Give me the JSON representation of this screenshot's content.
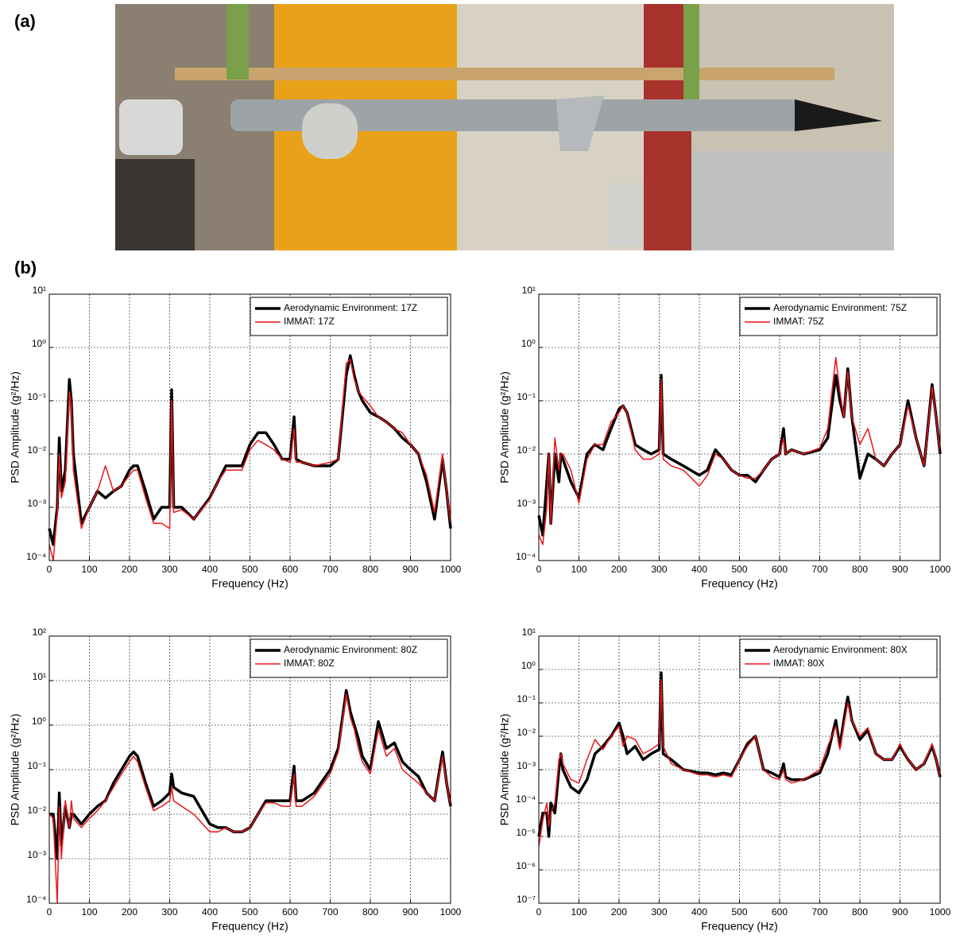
{
  "panel_labels": [
    "(a)",
    "(b)"
  ],
  "chart_data": [
    {
      "type": "line",
      "xlabel": "Frequency (Hz)",
      "ylabel": "PSD Amplitude (g²/Hz)",
      "yscale": "log",
      "grid": true,
      "legend": "upper right",
      "xlim": [
        0,
        1000
      ],
      "xticks": [
        0,
        100,
        200,
        300,
        400,
        500,
        600,
        700,
        800,
        900,
        1000
      ],
      "ylim": [
        0.0001,
        10
      ],
      "yticks": [
        {
          "value": 0.0001,
          "label": "10⁻⁴"
        },
        {
          "value": 0.001,
          "label": "10⁻³"
        },
        {
          "value": 0.01,
          "label": "10⁻²"
        },
        {
          "value": 0.1,
          "label": "10⁻¹"
        },
        {
          "value": 1,
          "label": "10⁰"
        },
        {
          "value": 10,
          "label": "10¹"
        }
      ],
      "x": [
        0,
        10,
        20,
        25,
        30,
        40,
        50,
        55,
        60,
        80,
        100,
        120,
        140,
        160,
        180,
        200,
        210,
        220,
        240,
        260,
        280,
        300,
        305,
        310,
        330,
        360,
        400,
        420,
        440,
        460,
        480,
        500,
        520,
        540,
        560,
        580,
        600,
        610,
        615,
        630,
        660,
        700,
        720,
        740,
        750,
        760,
        770,
        780,
        800,
        820,
        840,
        860,
        880,
        900,
        920,
        940,
        960,
        980,
        990,
        1000
      ],
      "series": [
        {
          "name": "Aerodynamic Environment: 17Z",
          "color": "#000000",
          "values": [
            0.0004,
            0.0002,
            0.001,
            0.02,
            0.002,
            0.005,
            0.25,
            0.1,
            0.01,
            0.0005,
            0.001,
            0.002,
            0.0015,
            0.002,
            0.0025,
            0.005,
            0.006,
            0.006,
            0.002,
            0.0006,
            0.001,
            0.001,
            0.16,
            0.001,
            0.001,
            0.0006,
            0.0015,
            0.003,
            0.006,
            0.006,
            0.006,
            0.015,
            0.025,
            0.025,
            0.015,
            0.008,
            0.008,
            0.05,
            0.008,
            0.007,
            0.006,
            0.006,
            0.008,
            0.3,
            0.7,
            0.3,
            0.15,
            0.1,
            0.06,
            0.05,
            0.04,
            0.03,
            0.02,
            0.015,
            0.01,
            0.003,
            0.0006,
            0.008,
            0.002,
            0.0004
          ]
        },
        {
          "name": "IMMAT: 17Z",
          "color": "#e8161b",
          "values": [
            0.0002,
            0.0001,
            0.0008,
            0.01,
            0.0015,
            0.003,
            0.15,
            0.08,
            0.005,
            0.0004,
            0.001,
            0.002,
            0.006,
            0.002,
            0.0025,
            0.004,
            0.005,
            0.005,
            0.0015,
            0.0005,
            0.0005,
            0.0004,
            0.1,
            0.0008,
            0.0009,
            0.0006,
            0.0014,
            0.003,
            0.005,
            0.005,
            0.005,
            0.012,
            0.018,
            0.015,
            0.012,
            0.008,
            0.007,
            0.03,
            0.007,
            0.007,
            0.006,
            0.007,
            0.008,
            0.5,
            0.6,
            0.25,
            0.15,
            0.12,
            0.08,
            0.05,
            0.04,
            0.03,
            0.025,
            0.015,
            0.01,
            0.004,
            0.0008,
            0.01,
            0.002,
            0.0005
          ]
        }
      ]
    },
    {
      "type": "line",
      "xlabel": "Frequency (Hz)",
      "ylabel": "PSD Amplitude (g²/Hz)",
      "yscale": "log",
      "grid": true,
      "legend": "upper right",
      "xlim": [
        0,
        1000
      ],
      "xticks": [
        0,
        100,
        200,
        300,
        400,
        500,
        600,
        700,
        800,
        900,
        1000
      ],
      "ylim": [
        0.0001,
        10
      ],
      "yticks": [
        {
          "value": 0.0001,
          "label": "10⁻⁴"
        },
        {
          "value": 0.001,
          "label": "10⁻³"
        },
        {
          "value": 0.01,
          "label": "10⁻²"
        },
        {
          "value": 0.1,
          "label": "10⁻¹"
        },
        {
          "value": 1,
          "label": "10⁰"
        },
        {
          "value": 10,
          "label": "10¹"
        }
      ],
      "x": [
        0,
        10,
        20,
        25,
        30,
        40,
        50,
        55,
        60,
        80,
        100,
        120,
        140,
        160,
        180,
        200,
        210,
        220,
        240,
        260,
        280,
        300,
        305,
        310,
        330,
        360,
        400,
        420,
        440,
        460,
        480,
        500,
        520,
        540,
        560,
        580,
        600,
        610,
        615,
        630,
        660,
        700,
        720,
        740,
        750,
        760,
        770,
        780,
        800,
        820,
        840,
        860,
        880,
        900,
        920,
        940,
        960,
        980,
        990,
        1000
      ],
      "series": [
        {
          "name": "Aerodynamic Environment: 75Z",
          "color": "#000000",
          "values": [
            0.0007,
            0.0003,
            0.003,
            0.01,
            0.0005,
            0.01,
            0.003,
            0.01,
            0.008,
            0.003,
            0.0015,
            0.01,
            0.015,
            0.012,
            0.03,
            0.07,
            0.08,
            0.06,
            0.015,
            0.012,
            0.01,
            0.012,
            0.3,
            0.01,
            0.008,
            0.006,
            0.004,
            0.005,
            0.012,
            0.008,
            0.005,
            0.004,
            0.004,
            0.003,
            0.005,
            0.008,
            0.01,
            0.03,
            0.01,
            0.012,
            0.01,
            0.012,
            0.02,
            0.3,
            0.1,
            0.05,
            0.4,
            0.05,
            0.0035,
            0.01,
            0.008,
            0.006,
            0.01,
            0.015,
            0.1,
            0.02,
            0.006,
            0.2,
            0.05,
            0.01
          ]
        },
        {
          "name": "IMMAT: 75Z",
          "color": "#e8161b",
          "values": [
            0.0003,
            0.0002,
            0.001,
            0.01,
            0.0005,
            0.02,
            0.005,
            0.01,
            0.01,
            0.005,
            0.0012,
            0.008,
            0.015,
            0.015,
            0.04,
            0.06,
            0.08,
            0.06,
            0.012,
            0.008,
            0.008,
            0.01,
            0.25,
            0.008,
            0.006,
            0.005,
            0.0025,
            0.004,
            0.01,
            0.008,
            0.005,
            0.004,
            0.0035,
            0.0035,
            0.005,
            0.008,
            0.01,
            0.02,
            0.01,
            0.012,
            0.01,
            0.013,
            0.03,
            0.65,
            0.15,
            0.05,
            0.35,
            0.05,
            0.015,
            0.03,
            0.008,
            0.006,
            0.01,
            0.015,
            0.08,
            0.02,
            0.006,
            0.18,
            0.05,
            0.01
          ]
        }
      ]
    },
    {
      "type": "line",
      "xlabel": "Frequency (Hz)",
      "ylabel": "PSD Amplitude (g²/Hz)",
      "yscale": "log",
      "grid": true,
      "legend": "upper right",
      "xlim": [
        0,
        1000
      ],
      "xticks": [
        0,
        100,
        200,
        300,
        400,
        500,
        600,
        700,
        800,
        900,
        1000
      ],
      "ylim": [
        0.0001,
        100
      ],
      "yticks": [
        {
          "value": 0.0001,
          "label": "10⁻⁴"
        },
        {
          "value": 0.001,
          "label": "10⁻³"
        },
        {
          "value": 0.01,
          "label": "10⁻²"
        },
        {
          "value": 0.1,
          "label": "10⁻¹"
        },
        {
          "value": 1,
          "label": "10⁰"
        },
        {
          "value": 10,
          "label": "10¹"
        },
        {
          "value": 100,
          "label": "10²"
        }
      ],
      "x": [
        0,
        10,
        20,
        25,
        30,
        40,
        50,
        55,
        60,
        80,
        100,
        120,
        140,
        160,
        180,
        200,
        210,
        220,
        240,
        260,
        280,
        300,
        305,
        310,
        330,
        360,
        400,
        420,
        440,
        460,
        480,
        500,
        520,
        540,
        560,
        580,
        600,
        610,
        615,
        630,
        660,
        700,
        720,
        740,
        750,
        760,
        770,
        780,
        800,
        820,
        840,
        860,
        880,
        900,
        920,
        940,
        960,
        980,
        990,
        1000
      ],
      "series": [
        {
          "name": "Aerodynamic Environment: 80Z",
          "color": "#000000",
          "values": [
            0.01,
            0.01,
            0.001,
            0.03,
            0.002,
            0.015,
            0.005,
            0.01,
            0.01,
            0.006,
            0.01,
            0.015,
            0.02,
            0.05,
            0.1,
            0.2,
            0.25,
            0.2,
            0.05,
            0.015,
            0.02,
            0.03,
            0.08,
            0.04,
            0.03,
            0.025,
            0.006,
            0.005,
            0.005,
            0.004,
            0.004,
            0.005,
            0.01,
            0.02,
            0.02,
            0.02,
            0.02,
            0.12,
            0.02,
            0.02,
            0.03,
            0.1,
            0.3,
            6,
            2,
            1,
            0.5,
            0.2,
            0.1,
            1.2,
            0.3,
            0.4,
            0.15,
            0.1,
            0.07,
            0.03,
            0.02,
            0.25,
            0.05,
            0.015
          ]
        },
        {
          "name": "IMMAT: 80Z",
          "color": "#e8161b",
          "values": [
            0.01,
            0.008,
            0.0001,
            0.015,
            0.001,
            0.02,
            0.005,
            0.02,
            0.008,
            0.005,
            0.008,
            0.012,
            0.02,
            0.04,
            0.08,
            0.15,
            0.2,
            0.15,
            0.04,
            0.012,
            0.015,
            0.02,
            0.04,
            0.02,
            0.015,
            0.01,
            0.004,
            0.004,
            0.005,
            0.004,
            0.004,
            0.005,
            0.01,
            0.018,
            0.018,
            0.015,
            0.015,
            0.08,
            0.015,
            0.015,
            0.025,
            0.08,
            0.25,
            5,
            1.5,
            0.8,
            0.3,
            0.15,
            0.08,
            0.8,
            0.2,
            0.3,
            0.1,
            0.07,
            0.05,
            0.03,
            0.02,
            0.2,
            0.05,
            0.015
          ]
        }
      ]
    },
    {
      "type": "line",
      "xlabel": "Frequency (Hz)",
      "ylabel": "PSD Amplitude (g²/Hz)",
      "yscale": "log",
      "grid": true,
      "legend": "upper right",
      "xlim": [
        0,
        1000
      ],
      "xticks": [
        0,
        100,
        200,
        300,
        400,
        500,
        600,
        700,
        800,
        900,
        1000
      ],
      "ylim": [
        1e-07,
        10
      ],
      "yticks": [
        {
          "value": 1e-07,
          "label": "10⁻⁷"
        },
        {
          "value": 1e-06,
          "label": "10⁻⁶"
        },
        {
          "value": 1e-05,
          "label": "10⁻⁵"
        },
        {
          "value": 0.0001,
          "label": "10⁻⁴"
        },
        {
          "value": 0.001,
          "label": "10⁻³"
        },
        {
          "value": 0.01,
          "label": "10⁻²"
        },
        {
          "value": 0.1,
          "label": "10⁻¹"
        },
        {
          "value": 1,
          "label": "10⁰"
        },
        {
          "value": 10,
          "label": "10¹"
        }
      ],
      "x": [
        0,
        10,
        20,
        25,
        30,
        40,
        50,
        55,
        60,
        80,
        100,
        120,
        140,
        160,
        180,
        200,
        210,
        220,
        240,
        260,
        280,
        300,
        305,
        310,
        330,
        360,
        400,
        420,
        440,
        460,
        480,
        500,
        520,
        540,
        560,
        580,
        600,
        610,
        615,
        630,
        660,
        700,
        720,
        740,
        750,
        760,
        770,
        780,
        800,
        820,
        840,
        860,
        880,
        900,
        920,
        940,
        960,
        980,
        990,
        1000
      ],
      "series": [
        {
          "name": "Aerodynamic Environment: 80X",
          "color": "#000000",
          "values": [
            1e-05,
            5e-05,
            5e-05,
            1e-05,
            0.0001,
            5e-05,
            0.001,
            0.003,
            0.001,
            0.0003,
            0.0002,
            0.0005,
            0.003,
            0.005,
            0.01,
            0.025,
            0.01,
            0.003,
            0.005,
            0.002,
            0.003,
            0.004,
            0.8,
            0.003,
            0.002,
            0.001,
            0.0008,
            0.0008,
            0.0007,
            0.0008,
            0.0007,
            0.002,
            0.006,
            0.01,
            0.001,
            0.0008,
            0.0006,
            0.0015,
            0.0006,
            0.0005,
            0.0005,
            0.0008,
            0.003,
            0.03,
            0.005,
            0.03,
            0.15,
            0.03,
            0.008,
            0.015,
            0.003,
            0.002,
            0.002,
            0.005,
            0.002,
            0.001,
            0.0015,
            0.005,
            0.002,
            0.0006
          ]
        },
        {
          "name": "IMMAT: 80X",
          "color": "#e8161b",
          "values": [
            5e-06,
            3e-05,
            0.0001,
            2e-05,
            5e-05,
            0.0001,
            0.002,
            0.003,
            0.0015,
            0.0005,
            0.0004,
            0.002,
            0.008,
            0.004,
            0.01,
            0.02,
            0.005,
            0.01,
            0.008,
            0.003,
            0.004,
            0.006,
            0.5,
            0.005,
            0.0015,
            0.001,
            0.0007,
            0.0007,
            0.0006,
            0.0007,
            0.0006,
            0.002,
            0.005,
            0.01,
            0.001,
            0.0006,
            0.0005,
            0.001,
            0.0005,
            0.0004,
            0.0005,
            0.001,
            0.005,
            0.02,
            0.004,
            0.02,
            0.1,
            0.03,
            0.01,
            0.018,
            0.003,
            0.002,
            0.002,
            0.006,
            0.002,
            0.001,
            0.0015,
            0.006,
            0.002,
            0.0006
          ]
        }
      ]
    }
  ]
}
